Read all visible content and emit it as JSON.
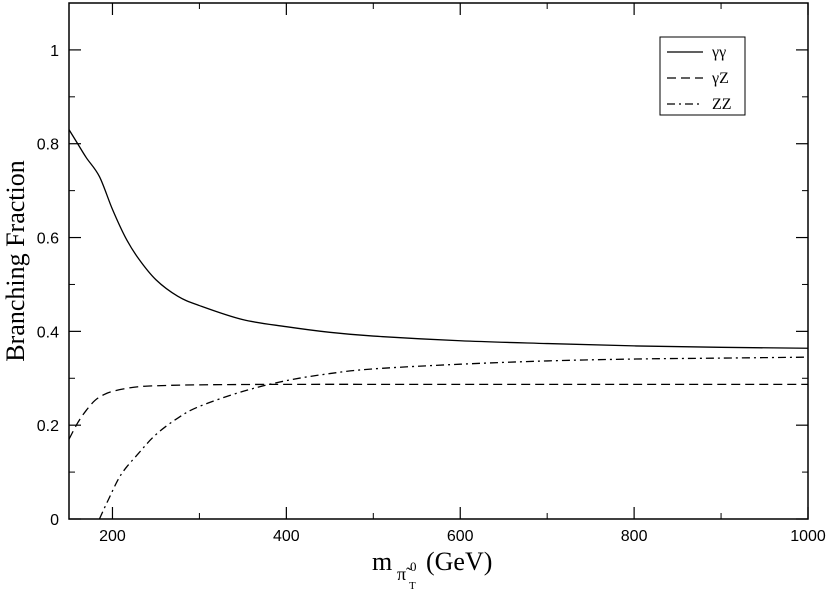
{
  "chart_data": {
    "type": "line",
    "title": "",
    "xlabel_main": "m",
    "xlabel_sub_symbol": "π̃",
    "xlabel_sub_superscript": "0",
    "xlabel_sub_subscript": "T",
    "xlabel_unit": "(GeV)",
    "ylabel": "Branching Fraction",
    "xlim": [
      150,
      1000
    ],
    "ylim": [
      0,
      1.1
    ],
    "x_ticks": [
      {
        "value": 200,
        "label": "200"
      },
      {
        "value": 400,
        "label": "400"
      },
      {
        "value": 600,
        "label": "600"
      },
      {
        "value": 800,
        "label": "800"
      },
      {
        "value": 1000,
        "label": "1000"
      }
    ],
    "y_ticks": [
      {
        "value": 0,
        "label": "0"
      },
      {
        "value": 0.2,
        "label": "0.2"
      },
      {
        "value": 0.4,
        "label": "0.4"
      },
      {
        "value": 0.6,
        "label": "0.6"
      },
      {
        "value": 0.8,
        "label": "0.8"
      },
      {
        "value": 1.0,
        "label": "1"
      }
    ],
    "grid": false,
    "legend_position": "top-right",
    "series": [
      {
        "name": "γγ",
        "style": "solid",
        "x": [
          150,
          160,
          170,
          185,
          200,
          215,
          230,
          250,
          275,
          300,
          350,
          400,
          450,
          500,
          600,
          700,
          800,
          900,
          1000
        ],
        "y": [
          0.83,
          0.8,
          0.77,
          0.73,
          0.66,
          0.6,
          0.555,
          0.51,
          0.475,
          0.455,
          0.425,
          0.41,
          0.398,
          0.39,
          0.38,
          0.374,
          0.369,
          0.366,
          0.364
        ]
      },
      {
        "name": "γZ",
        "style": "dashed",
        "x": [
          150,
          160,
          170,
          180,
          190,
          200,
          215,
          230,
          250,
          300,
          400,
          600,
          800,
          1000
        ],
        "y": [
          0.17,
          0.205,
          0.232,
          0.253,
          0.265,
          0.272,
          0.278,
          0.282,
          0.284,
          0.286,
          0.287,
          0.287,
          0.287,
          0.287
        ]
      },
      {
        "name": "ZZ",
        "style": "dash-dot",
        "x": [
          185,
          195,
          210,
          230,
          250,
          275,
          300,
          350,
          400,
          450,
          500,
          600,
          700,
          800,
          900,
          1000
        ],
        "y": [
          0.0,
          0.04,
          0.095,
          0.14,
          0.18,
          0.215,
          0.24,
          0.272,
          0.295,
          0.31,
          0.32,
          0.33,
          0.337,
          0.341,
          0.343,
          0.345
        ]
      }
    ]
  }
}
